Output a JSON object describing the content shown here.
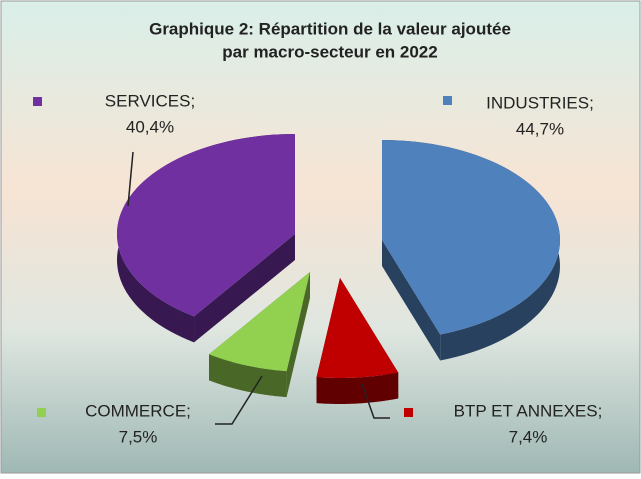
{
  "chart_data": {
    "type": "pie",
    "title": [
      "Graphique 2: Répartition de la valeur ajoutée",
      "par macro-secteur en 2022"
    ],
    "categories": [
      "INDUSTRIES;",
      "BTP ET ANNEXES;",
      "COMMERCE;",
      "SERVICES;"
    ],
    "values": [
      44.7,
      7.4,
      7.5,
      40.4
    ],
    "value_labels": [
      "44,7%",
      "7,4%",
      "7,5%",
      "40,4%"
    ],
    "colors": [
      "#4f81bd",
      "#c00000",
      "#92d050",
      "#7030a0"
    ]
  }
}
